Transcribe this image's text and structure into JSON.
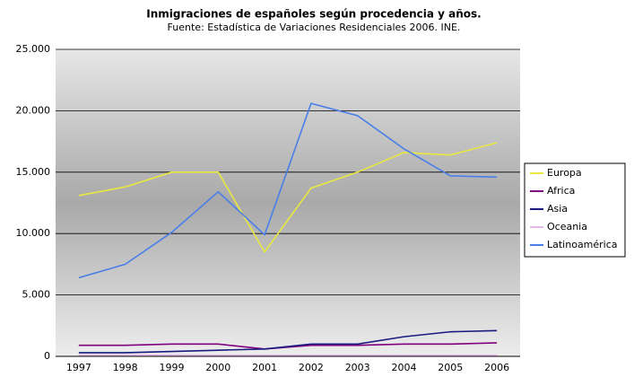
{
  "chart_data": {
    "type": "line",
    "title": "Inmigraciones de españoles según procedencia y años.",
    "subtitle": "Fuente: Estadística de Variaciones Residenciales 2006. INE.",
    "categories": [
      "1997",
      "1998",
      "1999",
      "2000",
      "2001",
      "2002",
      "2003",
      "2004",
      "2005",
      "2006"
    ],
    "series": [
      {
        "name": "Europa",
        "color": "#e8e840",
        "values": [
          13100,
          13800,
          15000,
          15000,
          8500,
          13700,
          15000,
          16600,
          16400,
          17400
        ]
      },
      {
        "name": "Africa",
        "color": "#800080",
        "values": [
          900,
          900,
          1000,
          1000,
          600,
          900,
          900,
          1000,
          1000,
          1100
        ]
      },
      {
        "name": "Asia",
        "color": "#1a1a80",
        "values": [
          300,
          300,
          400,
          500,
          600,
          1000,
          1000,
          1600,
          2000,
          2100
        ]
      },
      {
        "name": "Oceania",
        "color": "#e8b8e8",
        "values": [
          100,
          100,
          100,
          100,
          100,
          100,
          100,
          100,
          100,
          100
        ]
      },
      {
        "name": "Latinoamérica",
        "color": "#4a7ee8",
        "values": [
          6400,
          7500,
          10100,
          13400,
          9900,
          20600,
          19600,
          16900,
          14700,
          14600
        ]
      }
    ],
    "ylim": [
      0,
      25000
    ],
    "yticks": [
      0,
      {
        "value": 5000,
        "label": "5.000"
      },
      {
        "value": 10000,
        "label": "10.000"
      },
      {
        "value": 15000,
        "label": "15.000"
      },
      {
        "value": 20000,
        "label": "20.000"
      },
      {
        "value": 25000,
        "label": "25.000"
      }
    ],
    "grid": true,
    "legend": "right"
  }
}
